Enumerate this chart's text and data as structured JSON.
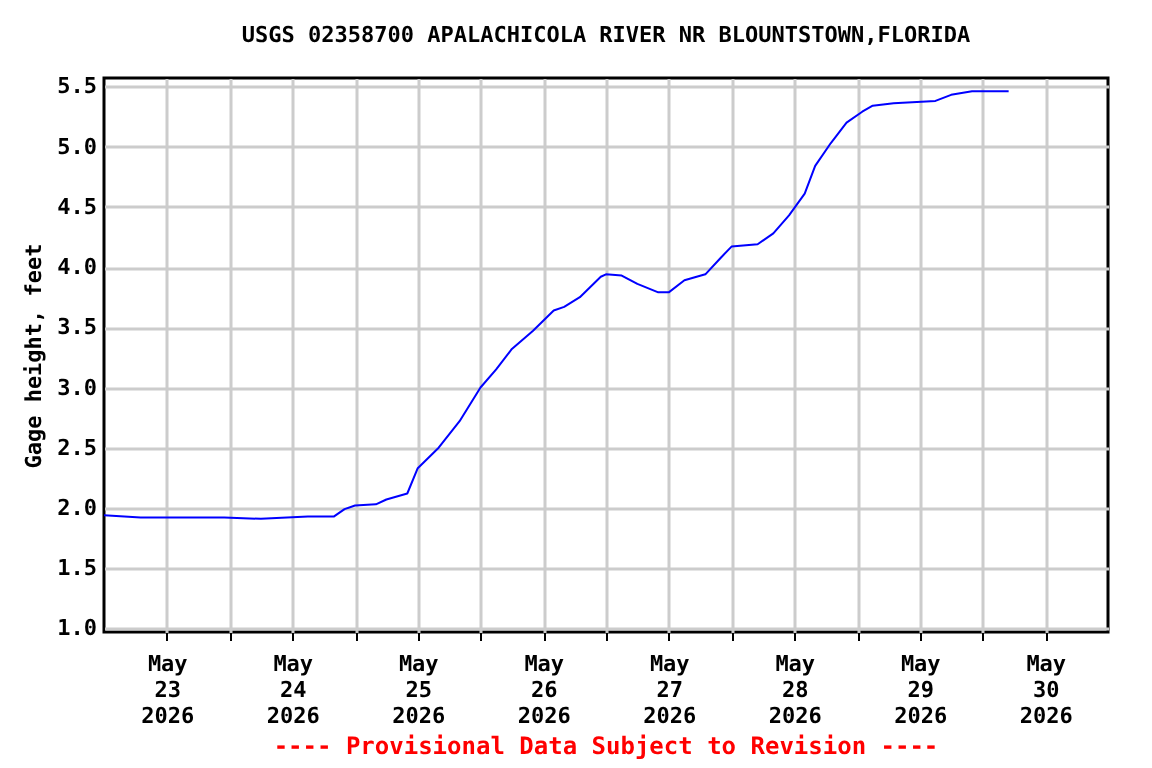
{
  "chart_data": {
    "type": "line",
    "title": "USGS 02358700 APALACHICOLA RIVER NR BLOUNTSTOWN,FLORIDA",
    "ylabel": "Gage height, feet",
    "annotations": [
      "---- Provisional Data Subject to Revision ----"
    ],
    "x": [
      "2026-05-23T00:00",
      "2026-05-23T07:00",
      "2026-05-23T23:00",
      "2026-05-24T06:00",
      "2026-05-24T15:00",
      "2026-05-24T20:00",
      "2026-05-24T22:00",
      "2026-05-25T00:00",
      "2026-05-25T04:00",
      "2026-05-25T06:00",
      "2026-05-25T10:00",
      "2026-05-25T12:00",
      "2026-05-25T16:00",
      "2026-05-25T20:00",
      "2026-05-26T00:00",
      "2026-05-26T03:00",
      "2026-05-26T06:00",
      "2026-05-26T10:00",
      "2026-05-26T14:00",
      "2026-05-26T16:00",
      "2026-05-26T19:00",
      "2026-05-26T23:00",
      "2026-05-27T00:00",
      "2026-05-27T03:00",
      "2026-05-27T06:00",
      "2026-05-27T10:00",
      "2026-05-27T12:00",
      "2026-05-27T15:00",
      "2026-05-27T19:00",
      "2026-05-27T22:00",
      "2026-05-28T00:00",
      "2026-05-28T05:00",
      "2026-05-28T08:00",
      "2026-05-28T11:00",
      "2026-05-28T14:00",
      "2026-05-28T16:00",
      "2026-05-28T19:00",
      "2026-05-28T22:00",
      "2026-05-29T01:00",
      "2026-05-29T03:00",
      "2026-05-29T07:00",
      "2026-05-29T15:00",
      "2026-05-29T18:00",
      "2026-05-29T22:00",
      "2026-05-30T02:00",
      "2026-05-30T05:00"
    ],
    "series": [
      {
        "color": "#0000ff",
        "values": [
          1.94,
          1.92,
          1.92,
          1.91,
          1.93,
          1.93,
          1.99,
          2.02,
          2.03,
          2.07,
          2.12,
          2.33,
          2.5,
          2.72,
          3.0,
          3.15,
          3.32,
          3.47,
          3.64,
          3.67,
          3.75,
          3.92,
          3.94,
          3.93,
          3.86,
          3.79,
          3.79,
          3.89,
          3.94,
          4.08,
          4.17,
          4.19,
          4.28,
          4.43,
          4.61,
          4.84,
          5.03,
          5.2,
          5.29,
          5.34,
          5.36,
          5.38,
          5.43,
          5.46,
          5.46,
          5.46
        ]
      }
    ],
    "xlim": [
      "2026-05-23T00:00",
      "2026-05-31T00:00"
    ],
    "xticks": [
      {
        "value": "2026-05-23T12:00",
        "label": "May\n23\n2026"
      },
      {
        "value": "2026-05-24T00:00",
        "label": null
      },
      {
        "value": "2026-05-24T12:00",
        "label": "May\n24\n2026"
      },
      {
        "value": "2026-05-25T00:00",
        "label": null
      },
      {
        "value": "2026-05-25T12:00",
        "label": "May\n25\n2026"
      },
      {
        "value": "2026-05-26T00:00",
        "label": null
      },
      {
        "value": "2026-05-26T12:00",
        "label": "May\n26\n2026"
      },
      {
        "value": "2026-05-27T00:00",
        "label": null
      },
      {
        "value": "2026-05-27T12:00",
        "label": "May\n27\n2026"
      },
      {
        "value": "2026-05-28T00:00",
        "label": null
      },
      {
        "value": "2026-05-28T12:00",
        "label": "May\n28\n2026"
      },
      {
        "value": "2026-05-29T00:00",
        "label": null
      },
      {
        "value": "2026-05-29T12:00",
        "label": "May\n29\n2026"
      },
      {
        "value": "2026-05-30T00:00",
        "label": null
      },
      {
        "value": "2026-05-30T12:00",
        "label": "May\n30\n2026"
      }
    ],
    "ylim": [
      0.97,
      5.57
    ],
    "yticks": [
      {
        "value": 1,
        "label": "1.0"
      },
      {
        "value": 1.5,
        "label": "1.5"
      },
      {
        "value": 2,
        "label": "2.0"
      },
      {
        "value": 2.5,
        "label": "2.5"
      },
      {
        "value": 3,
        "label": "3.0"
      },
      {
        "value": 3.5,
        "label": "3.5"
      },
      {
        "value": 4,
        "label": "4.0"
      },
      {
        "value": 4.5,
        "label": "4.5"
      },
      {
        "value": 5,
        "label": "5.0"
      },
      {
        "value": 5.5,
        "label": "5.5"
      }
    ],
    "grid": true
  }
}
